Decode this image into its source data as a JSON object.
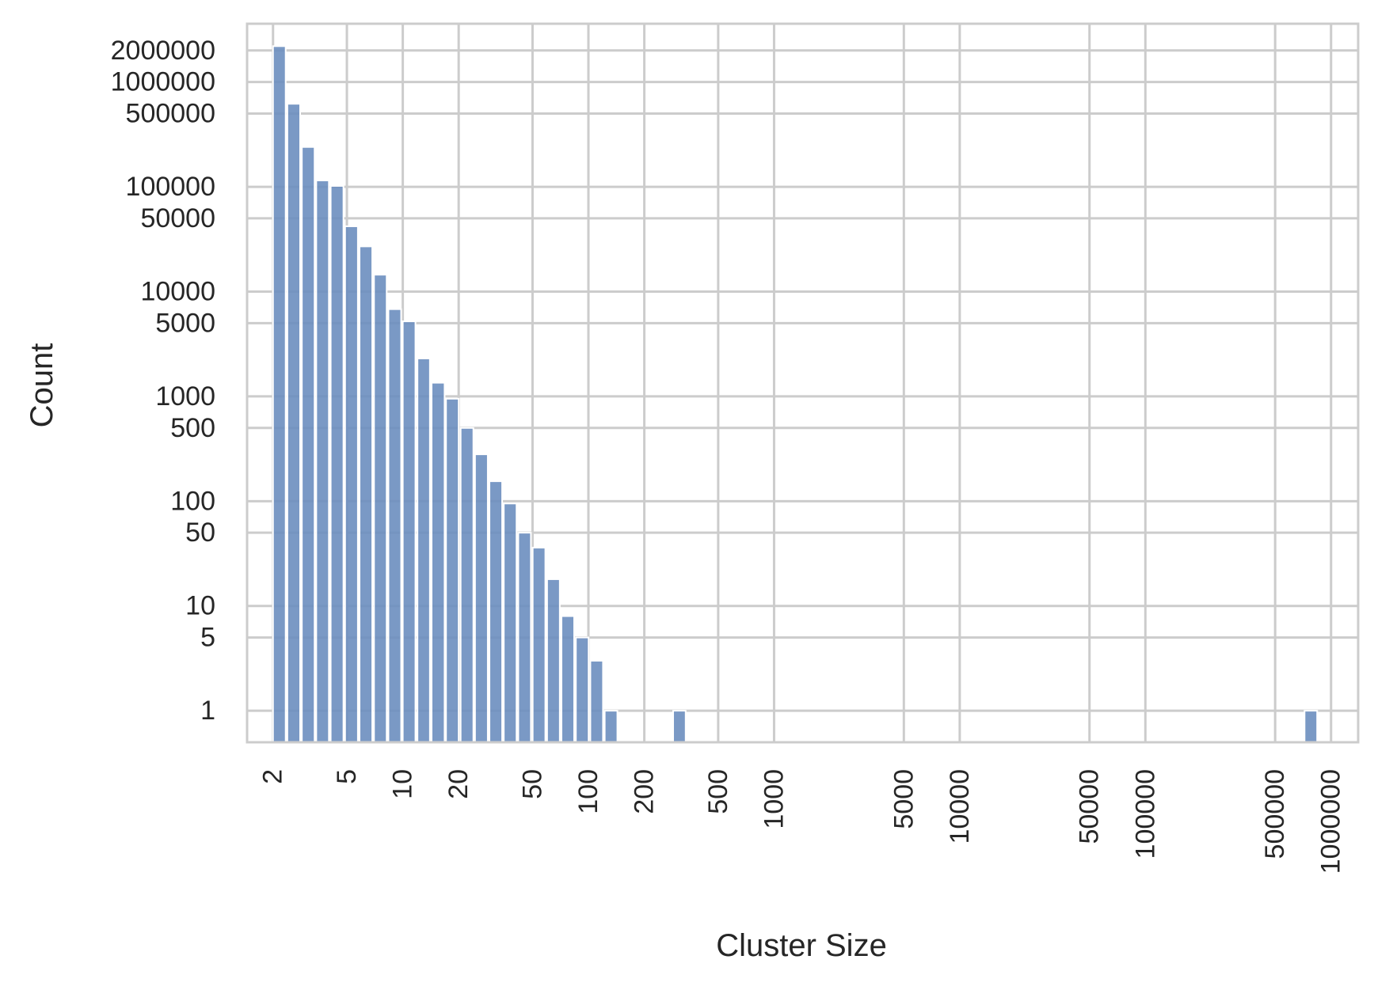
{
  "chart_data": {
    "type": "bar",
    "xlabel": "Cluster Size",
    "ylabel": "Count",
    "x_scale": "log",
    "y_scale": "log",
    "grid": true,
    "legend": "none",
    "bar_color": "#6c8ebf",
    "grid_color": "#cccccc",
    "xlim": [
      1.45,
      1400000
    ],
    "ylim": [
      0.5,
      3600000
    ],
    "x_ticks": [
      {
        "value": 2,
        "label": "2"
      },
      {
        "value": 5,
        "label": "5"
      },
      {
        "value": 10,
        "label": "10"
      },
      {
        "value": 20,
        "label": "20"
      },
      {
        "value": 50,
        "label": "50"
      },
      {
        "value": 100,
        "label": "100"
      },
      {
        "value": 200,
        "label": "200"
      },
      {
        "value": 500,
        "label": "500"
      },
      {
        "value": 1000,
        "label": "1000"
      },
      {
        "value": 5000,
        "label": "5000"
      },
      {
        "value": 10000,
        "label": "10000"
      },
      {
        "value": 50000,
        "label": "50000"
      },
      {
        "value": 100000,
        "label": "100000"
      },
      {
        "value": 500000,
        "label": "500000"
      },
      {
        "value": 1000000,
        "label": "1000000"
      }
    ],
    "y_ticks": [
      {
        "value": 1,
        "label": "1"
      },
      {
        "value": 5,
        "label": "5"
      },
      {
        "value": 10,
        "label": "10"
      },
      {
        "value": 50,
        "label": "50"
      },
      {
        "value": 100,
        "label": "100"
      },
      {
        "value": 500,
        "label": "500"
      },
      {
        "value": 1000,
        "label": "1000"
      },
      {
        "value": 5000,
        "label": "5000"
      },
      {
        "value": 10000,
        "label": "10000"
      },
      {
        "value": 50000,
        "label": "50000"
      },
      {
        "value": 100000,
        "label": "100000"
      },
      {
        "value": 500000,
        "label": "500000"
      },
      {
        "value": 1000000,
        "label": "1000000"
      },
      {
        "value": 2000000,
        "label": "2000000"
      }
    ],
    "bars": [
      {
        "x_start": 2.0,
        "x_end": 2.34,
        "count": 2200000
      },
      {
        "x_start": 2.39,
        "x_end": 2.8,
        "count": 620000
      },
      {
        "x_start": 2.86,
        "x_end": 3.35,
        "count": 240000
      },
      {
        "x_start": 3.42,
        "x_end": 4.0,
        "count": 115000
      },
      {
        "x_start": 4.09,
        "x_end": 4.79,
        "count": 102000
      },
      {
        "x_start": 4.89,
        "x_end": 5.73,
        "count": 42000
      },
      {
        "x_start": 5.85,
        "x_end": 6.85,
        "count": 27000
      },
      {
        "x_start": 7.0,
        "x_end": 8.19,
        "count": 14500
      },
      {
        "x_start": 8.37,
        "x_end": 9.8,
        "count": 6800
      },
      {
        "x_start": 10.0,
        "x_end": 11.7,
        "count": 5200
      },
      {
        "x_start": 12.0,
        "x_end": 14.0,
        "count": 2300
      },
      {
        "x_start": 14.3,
        "x_end": 16.8,
        "count": 1350
      },
      {
        "x_start": 17.1,
        "x_end": 20.0,
        "count": 950
      },
      {
        "x_start": 20.5,
        "x_end": 24.0,
        "count": 500
      },
      {
        "x_start": 24.5,
        "x_end": 28.7,
        "count": 280
      },
      {
        "x_start": 29.3,
        "x_end": 34.3,
        "count": 155
      },
      {
        "x_start": 35.0,
        "x_end": 41.0,
        "count": 95
      },
      {
        "x_start": 41.9,
        "x_end": 49.0,
        "count": 50
      },
      {
        "x_start": 50.1,
        "x_end": 58.6,
        "count": 36
      },
      {
        "x_start": 59.9,
        "x_end": 70.1,
        "count": 18
      },
      {
        "x_start": 71.6,
        "x_end": 83.8,
        "count": 8
      },
      {
        "x_start": 85.6,
        "x_end": 100.2,
        "count": 5
      },
      {
        "x_start": 102.4,
        "x_end": 119.8,
        "count": 3
      },
      {
        "x_start": 122.4,
        "x_end": 143.2,
        "count": 1
      },
      {
        "x_start": 286,
        "x_end": 334,
        "count": 1
      },
      {
        "x_start": 720000,
        "x_end": 842000,
        "count": 1
      }
    ]
  }
}
